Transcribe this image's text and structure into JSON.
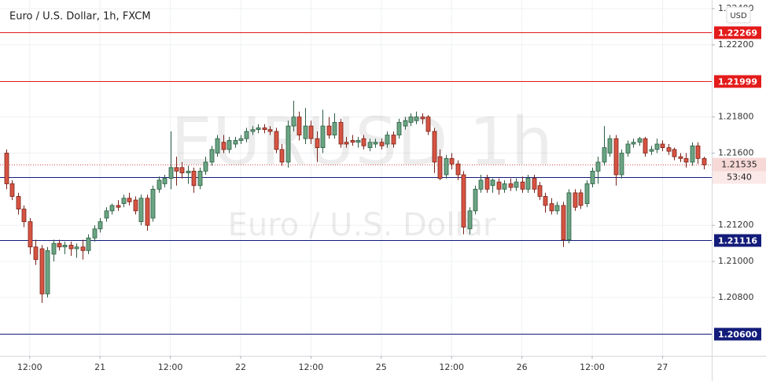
{
  "chart_data": {
    "type": "candlestick",
    "title": "Euro / U.S. Dollar, 1h, FXCM",
    "watermark": "EURUSD 1h",
    "watermark_subtitle": "Euro / U.S. Dollar",
    "currency": "USD",
    "up_color": "#6ba583",
    "down_color": "#d75442",
    "grid": true,
    "ylim": [
      1.20477,
      1.22448
    ],
    "yticks": [
      {
        "value": 1.224,
        "label": "1.22400"
      },
      {
        "value": 1.222,
        "label": "1.22200"
      },
      {
        "value": 1.218,
        "label": "1.21800"
      },
      {
        "value": 1.216,
        "label": "1.21600"
      },
      {
        "value": 1.212,
        "label": "1.21200"
      },
      {
        "value": 1.21,
        "label": "1.21000"
      },
      {
        "value": 1.208,
        "label": "1.20800"
      }
    ],
    "xlim": [
      -1.07,
      120.4
    ],
    "xticks": [
      {
        "value": 4,
        "label": "12:00"
      },
      {
        "value": 16,
        "label": "21"
      },
      {
        "value": 28,
        "label": "12:00"
      },
      {
        "value": 40,
        "label": "22"
      },
      {
        "value": 52,
        "label": "12:00"
      },
      {
        "value": 64,
        "label": "25"
      },
      {
        "value": 76,
        "label": "12:00"
      },
      {
        "value": 88,
        "label": "26"
      },
      {
        "value": 100,
        "label": "12:00"
      },
      {
        "value": 112,
        "label": "27"
      }
    ],
    "levels": [
      {
        "value": 1.22269,
        "color": "#e31b1b"
      },
      {
        "value": 1.21999,
        "color": "#e31b1b"
      },
      {
        "value": 1.21465,
        "color": "#131c7a"
      },
      {
        "value": 1.21116,
        "color": "#131c7a"
      },
      {
        "value": 1.206,
        "label": "1.20600",
        "color": "#131c7a"
      }
    ],
    "last_price": {
      "value": 1.21535,
      "countdown": "53:40",
      "color": "#e05050"
    },
    "candles": [
      [
        1.216,
        1.2162,
        1.214,
        1.2143
      ],
      [
        1.2143,
        1.2145,
        1.2134,
        1.2136
      ],
      [
        1.2136,
        1.2138,
        1.2126,
        1.2129
      ],
      [
        1.2129,
        1.2131,
        1.2119,
        1.2122
      ],
      [
        1.2122,
        1.2124,
        1.2104,
        1.2108
      ],
      [
        1.2108,
        1.2112,
        1.2098,
        1.2101
      ],
      [
        1.2107,
        1.2109,
        1.2077,
        1.2082
      ],
      [
        1.2082,
        1.2108,
        1.208,
        1.2106
      ],
      [
        1.2104,
        1.2112,
        1.21,
        1.211
      ],
      [
        1.211,
        1.2112,
        1.2106,
        1.2108
      ],
      [
        1.2108,
        1.2111,
        1.2104,
        1.2109
      ],
      [
        1.2109,
        1.2111,
        1.2103,
        1.2107
      ],
      [
        1.2107,
        1.211,
        1.2102,
        1.2108
      ],
      [
        1.2108,
        1.2112,
        1.2101,
        1.2106
      ],
      [
        1.2106,
        1.2115,
        1.2104,
        1.2113
      ],
      [
        1.2113,
        1.212,
        1.2111,
        1.2118
      ],
      [
        1.2118,
        1.2124,
        1.2116,
        1.2122
      ],
      [
        1.2124,
        1.213,
        1.2122,
        1.2128
      ],
      [
        1.2128,
        1.2132,
        1.2126,
        1.2131
      ],
      [
        1.2131,
        1.2134,
        1.2128,
        1.213
      ],
      [
        1.2132,
        1.2137,
        1.213,
        1.2135
      ],
      [
        1.2135,
        1.2138,
        1.2131,
        1.2133
      ],
      [
        1.2134,
        1.2136,
        1.2126,
        1.2128
      ],
      [
        1.2122,
        1.2137,
        1.212,
        1.2135
      ],
      [
        1.2135,
        1.2137,
        1.2117,
        1.212
      ],
      [
        1.2124,
        1.2142,
        1.2122,
        1.214
      ],
      [
        1.214,
        1.2147,
        1.2138,
        1.2145
      ],
      [
        1.2143,
        1.2148,
        1.2141,
        1.2146
      ],
      [
        1.2146,
        1.2172,
        1.214,
        1.2152
      ],
      [
        1.2152,
        1.2158,
        1.2142,
        1.215
      ],
      [
        1.2152,
        1.2155,
        1.2146,
        1.2149
      ],
      [
        1.2149,
        1.2153,
        1.2143,
        1.215
      ],
      [
        1.215,
        1.2152,
        1.2138,
        1.2142
      ],
      [
        1.2142,
        1.2152,
        1.214,
        1.215
      ],
      [
        1.215,
        1.2158,
        1.2148,
        1.2155
      ],
      [
        1.2155,
        1.2164,
        1.2153,
        1.2162
      ],
      [
        1.216,
        1.217,
        1.2158,
        1.2168
      ],
      [
        1.2166,
        1.217,
        1.216,
        1.2162
      ],
      [
        1.2162,
        1.2169,
        1.216,
        1.2167
      ],
      [
        1.2165,
        1.2169,
        1.2163,
        1.2167
      ],
      [
        1.2167,
        1.217,
        1.2165,
        1.2168
      ],
      [
        1.2168,
        1.2174,
        1.2166,
        1.2172
      ],
      [
        1.2172,
        1.2175,
        1.217,
        1.2173
      ],
      [
        1.2173,
        1.2176,
        1.2171,
        1.2174
      ],
      [
        1.2174,
        1.2176,
        1.2171,
        1.2173
      ],
      [
        1.2173,
        1.2175,
        1.217,
        1.2172
      ],
      [
        1.2172,
        1.2174,
        1.216,
        1.2162
      ],
      [
        1.2162,
        1.2165,
        1.2153,
        1.2155
      ],
      [
        1.2155,
        1.2178,
        1.2152,
        1.2175
      ],
      [
        1.2175,
        1.2189,
        1.2172,
        1.218
      ],
      [
        1.218,
        1.2183,
        1.2167,
        1.217
      ],
      [
        1.2168,
        1.2185,
        1.2165,
        1.2175
      ],
      [
        1.2175,
        1.2178,
        1.2165,
        1.2168
      ],
      [
        1.2168,
        1.2172,
        1.2155,
        1.2163
      ],
      [
        1.2163,
        1.2184,
        1.216,
        1.2175
      ],
      [
        1.2175,
        1.218,
        1.2168,
        1.217
      ],
      [
        1.217,
        1.2182,
        1.2168,
        1.2177
      ],
      [
        1.2177,
        1.2179,
        1.2163,
        1.2165
      ],
      [
        1.2166,
        1.2169,
        1.2163,
        1.2165
      ],
      [
        1.2167,
        1.217,
        1.2164,
        1.2166
      ],
      [
        1.2166,
        1.2169,
        1.2163,
        1.2167
      ],
      [
        1.2168,
        1.217,
        1.2162,
        1.2164
      ],
      [
        1.2163,
        1.2168,
        1.2161,
        1.2166
      ],
      [
        1.2165,
        1.2168,
        1.2163,
        1.2166
      ],
      [
        1.2166,
        1.2168,
        1.2162,
        1.2164
      ],
      [
        1.2165,
        1.2172,
        1.2163,
        1.217
      ],
      [
        1.217,
        1.2172,
        1.2163,
        1.2165
      ],
      [
        1.217,
        1.2179,
        1.2168,
        1.2177
      ],
      [
        1.2175,
        1.218,
        1.2173,
        1.2178
      ],
      [
        1.2177,
        1.2182,
        1.2175,
        1.218
      ],
      [
        1.2178,
        1.2183,
        1.2176,
        1.218
      ],
      [
        1.218,
        1.2182,
        1.2176,
        1.2179
      ],
      [
        1.218,
        1.2181,
        1.217,
        1.2172
      ],
      [
        1.2172,
        1.2174,
        1.2149,
        1.2155
      ],
      [
        1.2158,
        1.2162,
        1.2145,
        1.2146
      ],
      [
        1.2148,
        1.2159,
        1.2146,
        1.2157
      ],
      [
        1.2157,
        1.216,
        1.2151,
        1.2154
      ],
      [
        1.2154,
        1.2156,
        1.2145,
        1.2148
      ],
      [
        1.2148,
        1.215,
        1.2115,
        1.2119
      ],
      [
        1.2118,
        1.213,
        1.2115,
        1.2128
      ],
      [
        1.2128,
        1.2142,
        1.2126,
        1.214
      ],
      [
        1.214,
        1.2148,
        1.2138,
        1.2145
      ],
      [
        1.2146,
        1.2148,
        1.2138,
        1.214
      ],
      [
        1.2142,
        1.2146,
        1.2138,
        1.2145
      ],
      [
        1.2144,
        1.2146,
        1.2137,
        1.214
      ],
      [
        1.214,
        1.2145,
        1.2138,
        1.2143
      ],
      [
        1.2143,
        1.2146,
        1.2139,
        1.2141
      ],
      [
        1.2141,
        1.2146,
        1.2139,
        1.2144
      ],
      [
        1.2144,
        1.2147,
        1.2138,
        1.214
      ],
      [
        1.214,
        1.2148,
        1.2138,
        1.2146
      ],
      [
        1.2146,
        1.2148,
        1.2138,
        1.214
      ],
      [
        1.2142,
        1.2144,
        1.2134,
        1.2136
      ],
      [
        1.2136,
        1.2138,
        1.2127,
        1.2131
      ],
      [
        1.2132,
        1.2135,
        1.2126,
        1.2128
      ],
      [
        1.2128,
        1.2133,
        1.2126,
        1.2131
      ],
      [
        1.2131,
        1.2133,
        1.2108,
        1.2112
      ],
      [
        1.2112,
        1.214,
        1.211,
        1.2138
      ],
      [
        1.2138,
        1.214,
        1.2128,
        1.213
      ],
      [
        1.2138,
        1.214,
        1.2129,
        1.2131
      ],
      [
        1.2132,
        1.2145,
        1.213,
        1.2143
      ],
      [
        1.2143,
        1.2152,
        1.2141,
        1.215
      ],
      [
        1.215,
        1.2158,
        1.2143,
        1.2155
      ],
      [
        1.2155,
        1.2175,
        1.2153,
        1.2163
      ],
      [
        1.216,
        1.217,
        1.2158,
        1.2168
      ],
      [
        1.2168,
        1.217,
        1.2142,
        1.2148
      ],
      [
        1.2148,
        1.2162,
        1.2146,
        1.216
      ],
      [
        1.216,
        1.2167,
        1.2158,
        1.2165
      ],
      [
        1.2165,
        1.2168,
        1.2163,
        1.2166
      ],
      [
        1.2166,
        1.2169,
        1.2164,
        1.2168
      ],
      [
        1.2168,
        1.2169,
        1.2158,
        1.216
      ],
      [
        1.2161,
        1.2164,
        1.2159,
        1.2162
      ],
      [
        1.2162,
        1.2168,
        1.216,
        1.2165
      ],
      [
        1.2165,
        1.2167,
        1.2161,
        1.2163
      ],
      [
        1.2163,
        1.2165,
        1.2159,
        1.2161
      ],
      [
        1.2162,
        1.2163,
        1.2156,
        1.2158
      ],
      [
        1.2158,
        1.216,
        1.2155,
        1.2157
      ],
      [
        1.2157,
        1.216,
        1.2152,
        1.2155
      ],
      [
        1.2155,
        1.2166,
        1.2153,
        1.2164
      ],
      [
        1.2164,
        1.2166,
        1.2154,
        1.2157
      ],
      [
        1.2157,
        1.2158,
        1.2151,
        1.21535
      ]
    ]
  }
}
